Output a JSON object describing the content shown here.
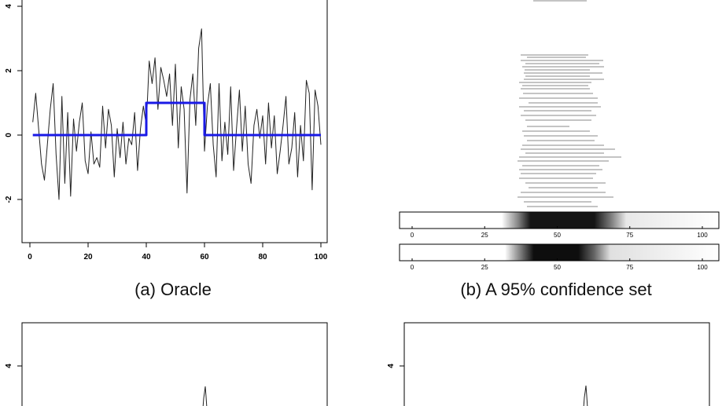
{
  "chart_data": [
    {
      "panel": "a",
      "type": "line",
      "caption": "(a) Oracle",
      "x_ticks": [
        "0",
        "20",
        "40",
        "60",
        "80",
        "100"
      ],
      "y_ticks": [
        "-2",
        "0",
        "2",
        "4"
      ],
      "xlim": [
        0,
        100
      ],
      "ylim": [
        -3.5,
        4.2
      ],
      "series": [
        {
          "color": "#222222",
          "x": [
            1,
            2,
            3,
            4,
            5,
            6,
            7,
            8,
            9,
            10,
            11,
            12,
            13,
            14,
            15,
            16,
            17,
            18,
            19,
            20,
            21,
            22,
            23,
            24,
            25,
            26,
            27,
            28,
            29,
            30,
            31,
            32,
            33,
            34,
            35,
            36,
            37,
            38,
            39,
            40,
            41,
            42,
            43,
            44,
            45,
            46,
            47,
            48,
            49,
            50,
            51,
            52,
            53,
            54,
            55,
            56,
            57,
            58,
            59,
            60,
            61,
            62,
            63,
            64,
            65,
            66,
            67,
            68,
            69,
            70,
            71,
            72,
            73,
            74,
            75,
            76,
            77,
            78,
            79,
            80,
            81,
            82,
            83,
            84,
            85,
            86,
            87,
            88,
            89,
            90,
            91,
            92,
            93,
            94,
            95,
            96,
            97,
            98,
            99,
            100
          ],
          "values": [
            0.4,
            1.3,
            0.2,
            -0.9,
            -1.4,
            -0.3,
            0.8,
            1.6,
            -0.6,
            -2.0,
            1.2,
            -1.5,
            0.7,
            -1.9,
            0.5,
            -0.5,
            0.4,
            1.0,
            -0.8,
            -1.2,
            0.1,
            -0.9,
            -0.7,
            -1.0,
            0.9,
            -0.4,
            0.8,
            0.3,
            -1.3,
            0.2,
            -0.7,
            0.4,
            -0.9,
            -0.1,
            -0.3,
            0.7,
            -1.1,
            0.2,
            0.9,
            0.3,
            2.3,
            1.6,
            2.4,
            0.8,
            2.1,
            1.7,
            1.2,
            1.9,
            0.3,
            2.2,
            -0.4,
            1.5,
            0.8,
            -1.8,
            1.1,
            1.9,
            0.3,
            2.7,
            3.3,
            -0.5,
            0.9,
            1.6,
            -0.3,
            -1.3,
            1.6,
            -0.8,
            0.4,
            -0.6,
            1.5,
            -1.1,
            0.2,
            1.4,
            -0.5,
            0.9,
            -0.9,
            -1.5,
            0.3,
            0.8,
            -0.1,
            0.6,
            -0.9,
            1.0,
            -0.4,
            0.6,
            -1.2,
            -0.5,
            0.3,
            1.2,
            -0.9,
            -0.4,
            0.7,
            -1.3,
            0.3,
            -0.8,
            1.7,
            1.3,
            -1.7,
            1.4,
            0.9,
            -0.3
          ]
        },
        {
          "color": "#1a1ae6",
          "x": [
            1,
            40,
            40,
            60,
            60,
            100
          ],
          "values": [
            0,
            0,
            1,
            1,
            0,
            0
          ]
        }
      ]
    },
    {
      "panel": "b",
      "type": "heatmap",
      "caption": "(b) A 95% confidence set",
      "x_ticks": [
        "0",
        "25",
        "50",
        "75",
        "100"
      ]
    },
    {
      "panel": "c",
      "type": "line",
      "y_ticks": [
        "4"
      ]
    },
    {
      "panel": "d",
      "type": "line",
      "y_ticks": [
        "4"
      ]
    }
  ]
}
